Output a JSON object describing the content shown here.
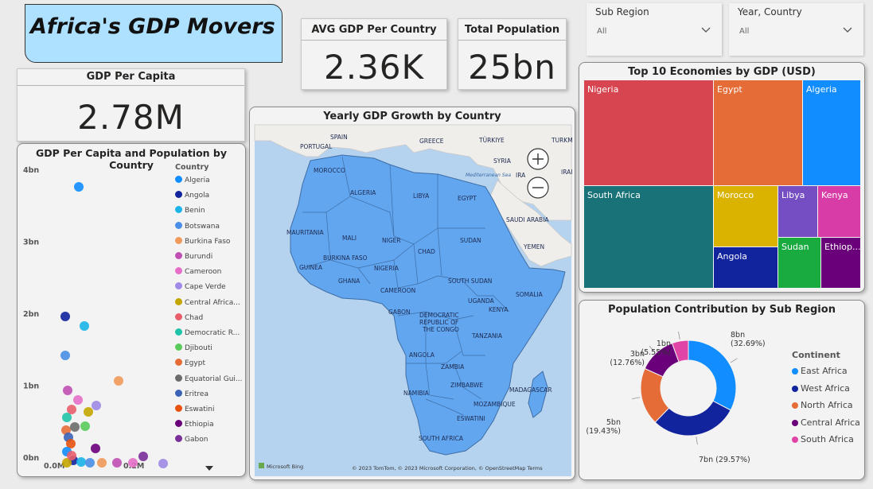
{
  "title": "Africa's GDP Movers",
  "kpis": {
    "avg_gdp_title": "AVG GDP Per Country",
    "avg_gdp_value": "2.36K",
    "total_pop_title": "Total Population",
    "total_pop_value": "25bn",
    "gdp_per_capita_title": "GDP Per Capita",
    "gdp_per_capita_value": "2.78M"
  },
  "slicers": [
    {
      "label": "Sub Region",
      "value": "All"
    },
    {
      "label": "Year, Country",
      "value": "All"
    }
  ],
  "scatter": {
    "title": "GDP Per Capita and Population by Country",
    "legend_title": "Country",
    "y_ticks": [
      "4bn",
      "3bn",
      "2bn",
      "1bn",
      "0bn"
    ],
    "x_ticks": [
      "0.0M",
      "0.2M"
    ],
    "legend": [
      {
        "name": "Algeria",
        "color": "#118dff"
      },
      {
        "name": "Angola",
        "color": "#12239e"
      },
      {
        "name": "Benin",
        "color": "#1ab4e8"
      },
      {
        "name": "Botswana",
        "color": "#4a8fe7"
      },
      {
        "name": "Burkina Faso",
        "color": "#f0995a"
      },
      {
        "name": "Burundi",
        "color": "#c04fb4"
      },
      {
        "name": "Cameroon",
        "color": "#e66ec8"
      },
      {
        "name": "Cape Verde",
        "color": "#9f8ae6"
      },
      {
        "name": "Central Africa...",
        "color": "#c4a600"
      },
      {
        "name": "Chad",
        "color": "#e85f6b"
      },
      {
        "name": "Democratic R...",
        "color": "#1fc4a8"
      },
      {
        "name": "Djibouti",
        "color": "#5acb5a"
      },
      {
        "name": "Egypt",
        "color": "#e66c37"
      },
      {
        "name": "Equatorial Gui...",
        "color": "#6b6b6b"
      },
      {
        "name": "Eritrea",
        "color": "#3a63b8"
      },
      {
        "name": "Eswatini",
        "color": "#e8530f"
      },
      {
        "name": "Ethiopia",
        "color": "#6b007b"
      },
      {
        "name": "Gabon",
        "color": "#7a2f99"
      }
    ]
  },
  "map": {
    "title": "Yearly GDP Growth by Country",
    "attribution": "© 2023 TomTom, © 2023 Microsoft Corporation, © OpenStreetMap  Terms",
    "provider": "Microsoft Bing",
    "sea_label": "Mediterranean Sea",
    "labels": [
      "SPAIN",
      "PORTUGAL",
      "GREECE",
      "TÜRKIYE",
      "TURKM",
      "SYRIA",
      "IRA",
      "IRAI",
      "MOROCCO",
      "ALGERIA",
      "LIBYA",
      "EGYPT",
      "SAUDI ARABIA",
      "MAURITANIA",
      "MALI",
      "NIGER",
      "CHAD",
      "SUDAN",
      "YEMEN",
      "BURKINA FASO",
      "GUINEA",
      "NIGERIA",
      "GHANA",
      "CAMEROON",
      "SOUTH SUDAN",
      "SOMALIA",
      "GABON",
      "UGANDA",
      "KENYA",
      "DEMOCRATIC",
      "REPUBLIC OF",
      "THE CONGO",
      "TANZANIA",
      "ANGOLA",
      "ZAMBIA",
      "ZIMBABWE",
      "NAMIBIA",
      "MOZAMBIQUE",
      "MADAGASCAR",
      "ESWATINI",
      "SOUTH AFRICA"
    ]
  },
  "treemap": {
    "title": "Top 10 Economies by GDP (USD)",
    "items": [
      {
        "name": "Nigeria",
        "color": "#d64550"
      },
      {
        "name": "Egypt",
        "color": "#e66c37"
      },
      {
        "name": "Algeria",
        "color": "#118dff"
      },
      {
        "name": "South Africa",
        "color": "#197278"
      },
      {
        "name": "Morocco",
        "color": "#d9b300"
      },
      {
        "name": "Libya",
        "color": "#744ec2"
      },
      {
        "name": "Kenya",
        "color": "#d83ca6"
      },
      {
        "name": "Angola",
        "color": "#12239e"
      },
      {
        "name": "Sudan",
        "color": "#1aab40"
      },
      {
        "name": "Ethiop...",
        "color": "#6b007b"
      }
    ]
  },
  "donut": {
    "title": "Population Contribution by Sub Region",
    "legend_title": "Continent",
    "slices": [
      {
        "name": "East Africa",
        "value": 32.69,
        "label": "8bn",
        "pct": "(32.69%)",
        "color": "#118dff"
      },
      {
        "name": "West Africa",
        "value": 29.57,
        "label": "7bn (29.57%)",
        "pct": "",
        "color": "#12239e"
      },
      {
        "name": "North Africa",
        "value": 19.43,
        "label": "5bn",
        "pct": "(19.43%)",
        "color": "#e66c37"
      },
      {
        "name": "Central Africa",
        "value": 12.76,
        "label": "3bn",
        "pct": "(12.76%)",
        "color": "#6b007b"
      },
      {
        "name": "South Africa",
        "value": 5.55,
        "label": "1bn",
        "pct": "(5.55%)",
        "color": "#e044a7"
      }
    ]
  }
}
